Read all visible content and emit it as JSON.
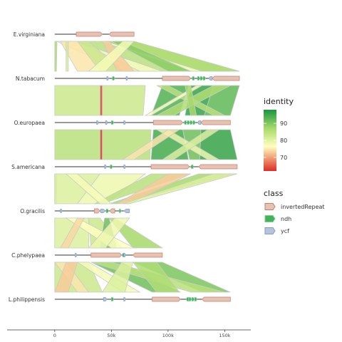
{
  "chart_data": {
    "type": "synteny",
    "x_axis": {
      "ticks": [
        0,
        50000,
        100000,
        150000
      ],
      "tick_labels": [
        "0",
        "50k",
        "100k",
        "150k"
      ],
      "range": [
        -42000,
        173000
      ]
    },
    "genomes": [
      {
        "name": "E.virginiana",
        "length": 70000,
        "features": [
          {
            "class": "invertedRepeat",
            "start": 19000,
            "end": 42000,
            "strand": 1
          },
          {
            "class": "invertedRepeat",
            "start": 48000,
            "end": 70000,
            "strand": -1
          }
        ]
      },
      {
        "name": "N.tabacum",
        "length": 163000,
        "features": [
          {
            "class": "ycf",
            "start": 46000,
            "end": 47500,
            "strand": 1
          },
          {
            "class": "ndh",
            "start": 51000,
            "end": 53000,
            "strand": 1
          },
          {
            "class": "ycf",
            "start": 63000,
            "end": 64500,
            "strand": 1
          },
          {
            "class": "invertedRepeat",
            "start": 95000,
            "end": 120000,
            "strand": 1
          },
          {
            "class": "ndh",
            "start": 121000,
            "end": 123000,
            "strand": -1
          },
          {
            "class": "ndh",
            "start": 126000,
            "end": 128000,
            "strand": 1
          },
          {
            "class": "ndh",
            "start": 128500,
            "end": 130500,
            "strand": 1
          },
          {
            "class": "ndh",
            "start": 131000,
            "end": 133000,
            "strand": 1
          },
          {
            "class": "ycf",
            "start": 136000,
            "end": 139000,
            "strand": -1
          },
          {
            "class": "invertedRepeat",
            "start": 139000,
            "end": 163000,
            "strand": -1
          }
        ]
      },
      {
        "name": "O.europaea",
        "length": 155000,
        "features": [
          {
            "class": "ycf",
            "start": 37000,
            "end": 38500,
            "strand": 1
          },
          {
            "class": "ycf",
            "start": 45000,
            "end": 46500,
            "strand": 1
          },
          {
            "class": "ndh",
            "start": 50000,
            "end": 52000,
            "strand": 1
          },
          {
            "class": "ycf",
            "start": 61000,
            "end": 62500,
            "strand": 1
          },
          {
            "class": "invertedRepeat",
            "start": 87000,
            "end": 113000,
            "strand": 1
          },
          {
            "class": "ndh",
            "start": 114000,
            "end": 116000,
            "strand": -1
          },
          {
            "class": "ndh",
            "start": 117000,
            "end": 119000,
            "strand": 1
          },
          {
            "class": "ndh",
            "start": 119500,
            "end": 121500,
            "strand": 1
          },
          {
            "class": "ndh",
            "start": 122000,
            "end": 124000,
            "strand": 1
          },
          {
            "class": "ycf",
            "start": 126000,
            "end": 129000,
            "strand": -1
          },
          {
            "class": "invertedRepeat",
            "start": 129000,
            "end": 155000,
            "strand": -1
          }
        ]
      },
      {
        "name": "S.americana",
        "length": 161000,
        "features": [
          {
            "class": "ycf",
            "start": 44000,
            "end": 45500,
            "strand": 1
          },
          {
            "class": "ndh",
            "start": 49000,
            "end": 51000,
            "strand": 1
          },
          {
            "class": "ycf",
            "start": 61000,
            "end": 62500,
            "strand": 1
          },
          {
            "class": "invertedRepeat",
            "start": 85000,
            "end": 119000,
            "strand": 1
          },
          {
            "class": "ndh",
            "start": 120000,
            "end": 122000,
            "strand": -1
          },
          {
            "class": "invertedRepeat",
            "start": 127000,
            "end": 161000,
            "strand": -1
          }
        ]
      },
      {
        "name": "O.gracilis",
        "length": 66000,
        "features": [
          {
            "class": "ycf",
            "start": 5000,
            "end": 6500,
            "strand": 1
          },
          {
            "class": "invertedRepeat",
            "start": 35000,
            "end": 40000,
            "strand": 1
          },
          {
            "class": "ycf",
            "start": 40500,
            "end": 44500,
            "strand": 1
          },
          {
            "class": "ndh",
            "start": 45500,
            "end": 47500,
            "strand": 1
          },
          {
            "class": "invertedRepeat",
            "start": 48500,
            "end": 53000,
            "strand": -1
          },
          {
            "class": "ndh",
            "start": 57000,
            "end": 58500,
            "strand": 1
          },
          {
            "class": "ycf",
            "start": 61000,
            "end": 66000,
            "strand": -1
          }
        ]
      },
      {
        "name": "C.phelypaea",
        "length": 95000,
        "features": [
          {
            "class": "ycf",
            "start": 18000,
            "end": 19500,
            "strand": 1
          },
          {
            "class": "invertedRepeat",
            "start": 32000,
            "end": 59000,
            "strand": 1
          },
          {
            "class": "ndh",
            "start": 59500,
            "end": 61000,
            "strand": -1
          },
          {
            "class": "ycf",
            "start": 61000,
            "end": 62500,
            "strand": 1
          },
          {
            "class": "invertedRepeat",
            "start": 69000,
            "end": 95000,
            "strand": -1
          }
        ]
      },
      {
        "name": "L.philippensis",
        "length": 155000,
        "features": [
          {
            "class": "ycf",
            "start": 43000,
            "end": 46000,
            "strand": 1
          },
          {
            "class": "ndh",
            "start": 50000,
            "end": 52000,
            "strand": 1
          },
          {
            "class": "ycf",
            "start": 61000,
            "end": 62500,
            "strand": 1
          },
          {
            "class": "invertedRepeat",
            "start": 86000,
            "end": 111000,
            "strand": 1
          },
          {
            "class": "ndh",
            "start": 116000,
            "end": 118000,
            "strand": -1
          },
          {
            "class": "ndh",
            "start": 118500,
            "end": 120500,
            "strand": 1
          },
          {
            "class": "ndh",
            "start": 121000,
            "end": 123000,
            "strand": 1
          },
          {
            "class": "ndh",
            "start": 123500,
            "end": 125500,
            "strand": 1
          },
          {
            "class": "invertedRepeat",
            "start": 130000,
            "end": 155000,
            "strand": -1
          }
        ]
      }
    ],
    "links": [
      [
        {
          "a": [
            0,
            2000
          ],
          "b": [
            0,
            1500
          ],
          "identity": 88
        },
        {
          "a": [
            2000,
            18000
          ],
          "b": [
            60000,
            95000
          ],
          "identity": 80
        },
        {
          "a": [
            5000,
            20000
          ],
          "b": [
            20000,
            75000
          ],
          "identity": 76
        },
        {
          "a": [
            20000,
            40000
          ],
          "b": [
            95000,
            120000
          ],
          "identity": 86
        },
        {
          "a": [
            20000,
            30000
          ],
          "b": [
            40000,
            60000
          ],
          "identity": 84
        },
        {
          "a": [
            40000,
            70000
          ],
          "b": [
            120000,
            163000
          ],
          "identity": 80
        },
        {
          "a": [
            45000,
            70000
          ],
          "b": [
            130000,
            163000
          ],
          "identity": 88
        },
        {
          "a": [
            50000,
            60000
          ],
          "b": [
            100000,
            120000
          ],
          "identity": 90
        },
        {
          "a": [
            42000,
            48000
          ],
          "b": [
            55000,
            70000
          ],
          "identity": 74
        },
        {
          "a": [
            10000,
            12000
          ],
          "b": [
            10000,
            12000
          ],
          "identity": 83
        },
        {
          "a": [
            60000,
            70000
          ],
          "b": [
            30000,
            45000
          ],
          "identity": 79
        }
      ],
      [
        {
          "a": [
            0,
            80000
          ],
          "b": [
            0,
            78000
          ],
          "identity": 84
        },
        {
          "a": [
            40000,
            42000
          ],
          "b": [
            40000,
            42000
          ],
          "identity": 64
        },
        {
          "a": [
            95000,
            118000
          ],
          "b": [
            85000,
            110000
          ],
          "identity": 94
        },
        {
          "a": [
            120000,
            140000
          ],
          "b": [
            115000,
            132000
          ],
          "identity": 96
        },
        {
          "a": [
            140000,
            163000
          ],
          "b": [
            132000,
            155000
          ],
          "identity": 93
        },
        {
          "a": [
            90000,
            100000
          ],
          "b": [
            140000,
            150000
          ],
          "identity": 86
        },
        {
          "a": [
            140000,
            155000
          ],
          "b": [
            90000,
            105000
          ],
          "identity": 87
        },
        {
          "a": [
            125000,
            130000
          ],
          "b": [
            80000,
            85000
          ],
          "identity": 78
        },
        {
          "a": [
            115000,
            120000
          ],
          "b": [
            120000,
            125000
          ],
          "identity": 88
        }
      ],
      [
        {
          "a": [
            0,
            85000
          ],
          "b": [
            0,
            84000
          ],
          "identity": 86
        },
        {
          "a": [
            40000,
            42000
          ],
          "b": [
            40000,
            42000
          ],
          "identity": 63
        },
        {
          "a": [
            87000,
            113000
          ],
          "b": [
            85000,
            118000
          ],
          "identity": 95
        },
        {
          "a": [
            113000,
            129000
          ],
          "b": [
            119000,
            128000
          ],
          "identity": 92
        },
        {
          "a": [
            129000,
            155000
          ],
          "b": [
            128000,
            161000
          ],
          "identity": 96
        },
        {
          "a": [
            90000,
            100000
          ],
          "b": [
            135000,
            145000
          ],
          "identity": 80
        },
        {
          "a": [
            100000,
            110000
          ],
          "b": [
            60000,
            70000
          ],
          "identity": 76
        },
        {
          "a": [
            135000,
            145000
          ],
          "b": [
            95000,
            105000
          ],
          "identity": 82
        }
      ],
      [
        {
          "a": [
            0,
            2000
          ],
          "b": [
            0,
            1500
          ],
          "identity": 84
        },
        {
          "a": [
            0,
            40000
          ],
          "b": [
            0,
            20000
          ],
          "identity": 82
        },
        {
          "a": [
            40000,
            80000
          ],
          "b": [
            20000,
            45000
          ],
          "identity": 80
        },
        {
          "a": [
            85000,
            119000
          ],
          "b": [
            35000,
            42000
          ],
          "identity": 86
        },
        {
          "a": [
            127000,
            161000
          ],
          "b": [
            48000,
            55000
          ],
          "identity": 88
        },
        {
          "a": [
            100000,
            120000
          ],
          "b": [
            55000,
            66000
          ],
          "identity": 74
        },
        {
          "a": [
            10000,
            20000
          ],
          "b": [
            40000,
            50000
          ],
          "identity": 79
        },
        {
          "a": [
            140000,
            161000
          ],
          "b": [
            60000,
            66000
          ],
          "identity": 82
        }
      ],
      [
        {
          "a": [
            0,
            30000
          ],
          "b": [
            0,
            30000
          ],
          "identity": 82
        },
        {
          "a": [
            30000,
            40000
          ],
          "b": [
            32000,
            59000
          ],
          "identity": 84
        },
        {
          "a": [
            48000,
            53000
          ],
          "b": [
            69000,
            95000
          ],
          "identity": 88
        },
        {
          "a": [
            44000,
            48000
          ],
          "b": [
            40000,
            55000
          ],
          "identity": 92
        },
        {
          "a": [
            10000,
            20000
          ],
          "b": [
            50000,
            70000
          ],
          "identity": 78
        },
        {
          "a": [
            53000,
            66000
          ],
          "b": [
            30000,
            45000
          ],
          "identity": 80
        },
        {
          "a": [
            20000,
            26000
          ],
          "b": [
            5000,
            12000
          ],
          "identity": 75
        }
      ],
      [
        {
          "a": [
            0,
            30000
          ],
          "b": [
            0,
            42000
          ],
          "identity": 84
        },
        {
          "a": [
            32000,
            59000
          ],
          "b": [
            86000,
            111000
          ],
          "identity": 92
        },
        {
          "a": [
            69000,
            95000
          ],
          "b": [
            130000,
            155000
          ],
          "identity": 91
        },
        {
          "a": [
            32000,
            50000
          ],
          "b": [
            120000,
            150000
          ],
          "identity": 86
        },
        {
          "a": [
            69000,
            90000
          ],
          "b": [
            90000,
            110000
          ],
          "identity": 87
        },
        {
          "a": [
            20000,
            30000
          ],
          "b": [
            60000,
            75000
          ],
          "identity": 79
        },
        {
          "a": [
            59000,
            69000
          ],
          "b": [
            42000,
            62000
          ],
          "identity": 82
        },
        {
          "a": [
            0,
            10000
          ],
          "b": [
            20000,
            30000
          ],
          "identity": 76
        },
        {
          "a": [
            10000,
            20000
          ],
          "b": [
            0,
            12000
          ],
          "identity": 74
        }
      ]
    ],
    "identity_scale": {
      "title": "identity",
      "ticks": [
        70,
        80,
        90
      ],
      "range": [
        62,
        98
      ],
      "colors": [
        "#de2d26",
        "#ffffbf",
        "#a6d96a",
        "#1a9641"
      ]
    },
    "class_legend": {
      "title": "class",
      "items": [
        {
          "label": "invertedRepeat",
          "fill": "#e4c3b5",
          "stroke": "#c97c68"
        },
        {
          "label": "ndh",
          "fill": "#41b35c",
          "stroke": "#7fce8f"
        },
        {
          "label": "ycf",
          "fill": "#b7c3d8",
          "stroke": "#7a9ecf"
        }
      ]
    },
    "legend_position": "right",
    "grid": false
  }
}
